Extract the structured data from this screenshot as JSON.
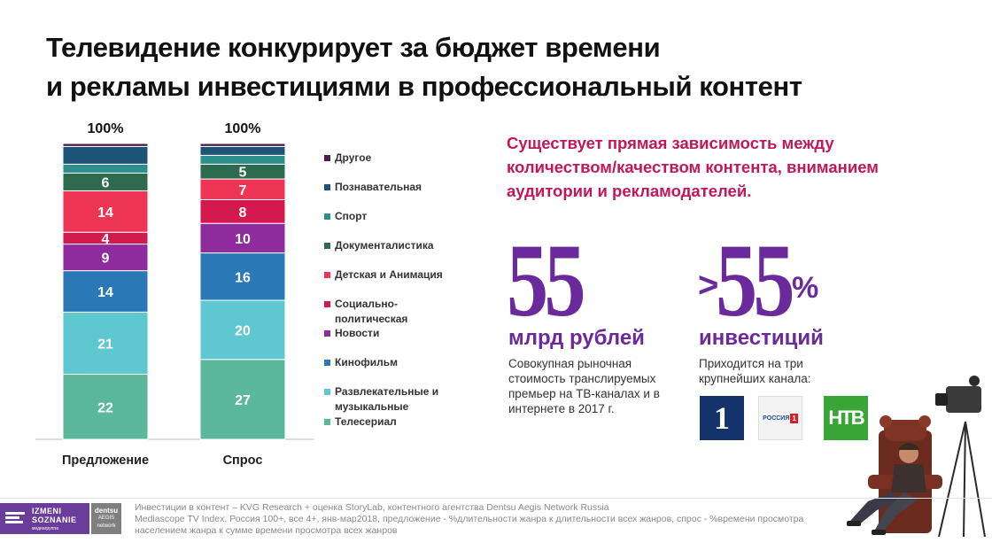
{
  "title": {
    "line1": "Телевидение конкурирует за бюджет времени",
    "line2": "и рекламы инвестициями в профессиональный контент"
  },
  "chart_data": {
    "type": "bar",
    "stacked": true,
    "percent_stacked": true,
    "categories": [
      "Предложение",
      "Спрос"
    ],
    "totals_label": [
      "100%",
      "100%"
    ],
    "series": [
      {
        "name": "Телесериал",
        "color": "#5bb89a",
        "values": [
          22,
          27
        ],
        "labels": [
          "22",
          "27"
        ]
      },
      {
        "name": "Развлекательные и музыкальные",
        "color": "#5ec7cf",
        "values": [
          21,
          20
        ],
        "labels": [
          "21",
          "20"
        ]
      },
      {
        "name": "Кинофильм",
        "color": "#2b78b7",
        "values": [
          14,
          16
        ],
        "labels": [
          "14",
          "16"
        ]
      },
      {
        "name": "Новости",
        "color": "#8e2c9d",
        "values": [
          9,
          10
        ],
        "labels": [
          "9",
          "10"
        ]
      },
      {
        "name": "Социально-политическая",
        "color": "#d4194f",
        "values": [
          4,
          8
        ],
        "labels": [
          "4",
          "8"
        ]
      },
      {
        "name": "Детская и Анимация",
        "color": "#ee3556",
        "values": [
          14,
          7
        ],
        "labels": [
          "14",
          "7"
        ]
      },
      {
        "name": "Документалистика",
        "color": "#2e6b4e",
        "values": [
          6,
          5
        ],
        "labels": [
          "6",
          "5"
        ]
      },
      {
        "name": "Спорт",
        "color": "#2c8f8a",
        "values": [
          3,
          3
        ],
        "labels": [
          "",
          ""
        ]
      },
      {
        "name": "Познавательная",
        "color": "#1d5377",
        "values": [
          6,
          3
        ],
        "labels": [
          "",
          ""
        ]
      },
      {
        "name": "Другое",
        "color": "#4a1d52",
        "values": [
          1,
          1
        ],
        "labels": [
          "",
          ""
        ]
      }
    ],
    "ylim": [
      0,
      100
    ],
    "legend_position": "right",
    "grid": false
  },
  "legend": {
    "items": [
      {
        "label": "Другое",
        "color": "#4a1d52"
      },
      {
        "label": "Познавательная",
        "color": "#1d5377"
      },
      {
        "label": "Спорт",
        "color": "#2c8f8a"
      },
      {
        "label": "Документалистика",
        "color": "#2e6b4e"
      },
      {
        "label": "Детская и Анимация",
        "color": "#ee3556"
      },
      {
        "label": "Социально-\nполитическая",
        "color": "#d4194f"
      },
      {
        "label": "Новости",
        "color": "#8e2c9d"
      },
      {
        "label": "Кинофильм",
        "color": "#2b78b7"
      },
      {
        "label": "Развлекательные и\nмузыкальные",
        "color": "#5ec7cf"
      },
      {
        "label": "Телесериал",
        "color": "#5bb89a"
      }
    ]
  },
  "claim": "Существует прямая зависимость между количеством/качеством контента, вниманием аудитории и рекламодателей.",
  "stat1": {
    "number": "55",
    "label": "млрд рублей",
    "desc": "Совокупная рыночная стоимость транслируемых премьер на ТВ-каналах и в интернете в 2017 г."
  },
  "stat2": {
    "prefix": ">",
    "number": "55",
    "suffix": "%",
    "label": "инвестиций",
    "desc": "Приходится на три крупнейших канала:"
  },
  "channels": {
    "first_glyph": "1",
    "russia_text": "РОССИЯ",
    "russia_num": "1",
    "ntv_text": "НТВ"
  },
  "footer": {
    "izmeni_line1": "IZMENI",
    "izmeni_line2": "SOZNANIE",
    "izmeni_sub": "медиагруппа",
    "dentsu_line1": "dentsu",
    "dentsu_line2": "AEGIS",
    "dentsu_line3": "network",
    "note1": "Инвестиции в контент – KVG Research + оценка StoryLab, контентного агентства Dentsu Aegis Network Russia",
    "note2": "Mediascope TV Index, Россия 100+, все 4+, янв-мар2018, предложение - %длительности жанра к длительности всех жанров,  спрос - %времени просмотра населением жанра к сумме времени просмотра всех жанров"
  },
  "colors": {
    "accent_purple": "#6a2a9c",
    "accent_magenta": "#c2185b"
  }
}
